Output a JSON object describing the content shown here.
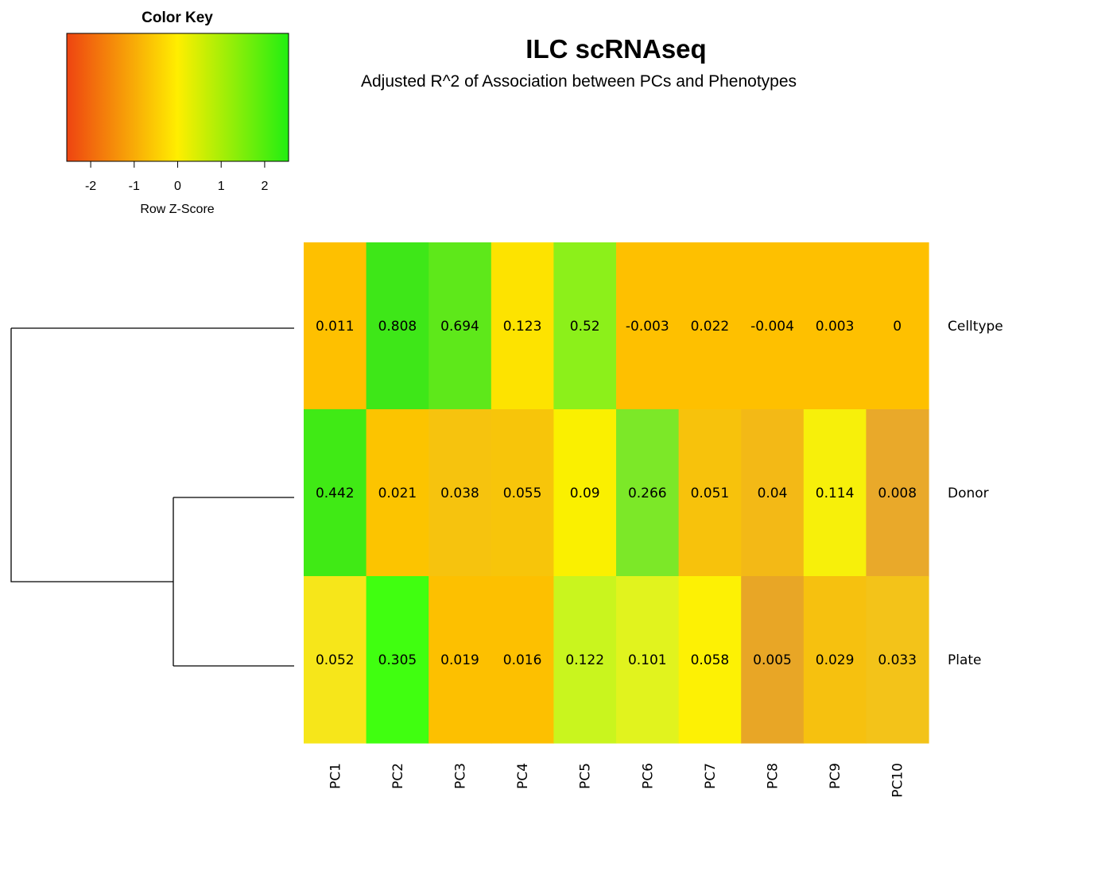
{
  "title": "ILC scRNAseq",
  "subtitle": "Adjusted R^2 of Association between PCs and Phenotypes",
  "color_key": {
    "title": "Color Key",
    "xlabel": "Row Z-Score",
    "ticks": [
      "-2",
      "-1",
      "0",
      "1",
      "2"
    ],
    "tick_values": [
      -2,
      -1,
      0,
      1,
      2
    ],
    "range": [
      -2.55,
      2.55
    ],
    "low_color": "#ee4411",
    "mid_color": "#ffee00",
    "high_color": "#22ee11"
  },
  "chart_data": {
    "type": "heatmap",
    "title": "ILC scRNAseq",
    "subtitle": "Adjusted R^2 of Association between PCs and Phenotypes",
    "x": [
      "PC1",
      "PC2",
      "PC3",
      "PC4",
      "PC5",
      "PC6",
      "PC7",
      "PC8",
      "PC9",
      "PC10"
    ],
    "rows": [
      "Celltype",
      "Donor",
      "Plate"
    ],
    "values": [
      [
        "0.011",
        "0.808",
        "0.694",
        "0.123",
        "0.52",
        "-0.003",
        "0.022",
        "-0.004",
        "0.003",
        "0"
      ],
      [
        "0.442",
        "0.021",
        "0.038",
        "0.055",
        "0.09",
        "0.266",
        "0.051",
        "0.04",
        "0.114",
        "0.008"
      ],
      [
        "0.052",
        "0.305",
        "0.019",
        "0.016",
        "0.122",
        "0.101",
        "0.058",
        "0.005",
        "0.029",
        "0.033"
      ]
    ],
    "cell_colors": [
      [
        "#fec000",
        "#3ee718",
        "#5ee81a",
        "#fde300",
        "#8cf01a",
        "#fec000",
        "#fec000",
        "#fec000",
        "#fec000",
        "#fec000"
      ],
      [
        "#40ea15",
        "#fcc400",
        "#f6c30e",
        "#f7c50a",
        "#faf000",
        "#7ce828",
        "#f7c20c",
        "#f3b916",
        "#f7f00a",
        "#e9a92a"
      ],
      [
        "#f6e61a",
        "#40ff10",
        "#fdc000",
        "#fdc000",
        "#c9f51e",
        "#e1f31e",
        "#fdf104",
        "#e8a626",
        "#f6c10f",
        "#f3c319"
      ]
    ],
    "dendrogram": "rows",
    "legend": "top-left"
  }
}
